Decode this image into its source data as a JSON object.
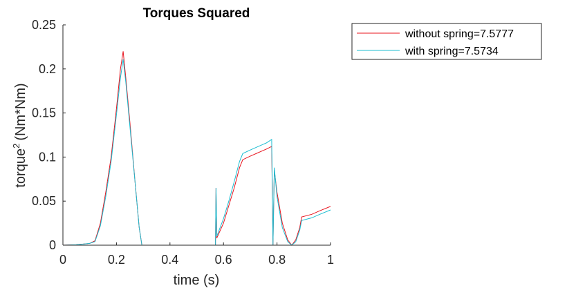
{
  "chart_data": {
    "type": "line",
    "title": "Torques Squared",
    "xlabel": "time (s)",
    "ylabel_base": "torque",
    "ylabel_superscript": "2",
    "ylabel_unit": "(Nm*Nm)",
    "xlim": [
      0,
      1
    ],
    "ylim": [
      0,
      0.25
    ],
    "x_ticks": [
      0,
      0.2,
      0.4,
      0.6,
      0.8,
      1
    ],
    "x_tick_labels": [
      "0",
      "0.2",
      "0.4",
      "0.6",
      "0.8",
      "1"
    ],
    "y_ticks": [
      0,
      0.05,
      0.1,
      0.15,
      0.2,
      0.25
    ],
    "y_tick_labels": [
      "0",
      "0.05",
      "0.1",
      "0.15",
      "0.2",
      "0.25"
    ],
    "grid": false,
    "legend_position": "outside-right-top",
    "series": [
      {
        "name": "without spring=7.5777",
        "color": "#e8141e",
        "points": [
          [
            0,
            0
          ],
          [
            0.05,
            0.0005
          ],
          [
            0.1,
            0.002
          ],
          [
            0.12,
            0.005
          ],
          [
            0.14,
            0.025
          ],
          [
            0.16,
            0.06
          ],
          [
            0.18,
            0.1
          ],
          [
            0.2,
            0.155
          ],
          [
            0.215,
            0.2
          ],
          [
            0.225,
            0.22
          ],
          [
            0.235,
            0.19
          ],
          [
            0.25,
            0.14
          ],
          [
            0.27,
            0.07
          ],
          [
            0.285,
            0.02
          ],
          [
            0.295,
            0.0
          ],
          [
            0.3,
            0
          ],
          [
            0.4,
            0
          ],
          [
            0.5,
            0
          ],
          [
            0.57,
            0
          ],
          [
            0.572,
            0.065
          ],
          [
            0.575,
            0.008
          ],
          [
            0.6,
            0.025
          ],
          [
            0.62,
            0.045
          ],
          [
            0.64,
            0.065
          ],
          [
            0.66,
            0.088
          ],
          [
            0.672,
            0.097
          ],
          [
            0.7,
            0.101
          ],
          [
            0.73,
            0.105
          ],
          [
            0.76,
            0.109
          ],
          [
            0.78,
            0.112
          ],
          [
            0.785,
            0.0
          ],
          [
            0.79,
            0.085
          ],
          [
            0.8,
            0.06
          ],
          [
            0.82,
            0.025
          ],
          [
            0.84,
            0.006
          ],
          [
            0.855,
            0.0
          ],
          [
            0.87,
            0.006
          ],
          [
            0.885,
            0.02
          ],
          [
            0.892,
            0.032
          ],
          [
            0.93,
            0.035
          ],
          [
            0.96,
            0.039
          ],
          [
            1.0,
            0.044
          ]
        ]
      },
      {
        "name": "with spring=7.5734",
        "color": "#1bbdd1",
        "points": [
          [
            0,
            0
          ],
          [
            0.05,
            0.0005
          ],
          [
            0.1,
            0.002
          ],
          [
            0.12,
            0.004
          ],
          [
            0.14,
            0.022
          ],
          [
            0.16,
            0.055
          ],
          [
            0.18,
            0.095
          ],
          [
            0.2,
            0.148
          ],
          [
            0.215,
            0.19
          ],
          [
            0.225,
            0.211
          ],
          [
            0.235,
            0.185
          ],
          [
            0.25,
            0.135
          ],
          [
            0.27,
            0.07
          ],
          [
            0.285,
            0.02
          ],
          [
            0.295,
            0.0
          ],
          [
            0.3,
            0
          ],
          [
            0.4,
            0
          ],
          [
            0.5,
            0
          ],
          [
            0.57,
            0
          ],
          [
            0.572,
            0.065
          ],
          [
            0.575,
            0.01
          ],
          [
            0.6,
            0.03
          ],
          [
            0.62,
            0.05
          ],
          [
            0.64,
            0.072
          ],
          [
            0.66,
            0.095
          ],
          [
            0.672,
            0.104
          ],
          [
            0.7,
            0.108
          ],
          [
            0.73,
            0.112
          ],
          [
            0.76,
            0.116
          ],
          [
            0.78,
            0.12
          ],
          [
            0.785,
            0.0
          ],
          [
            0.79,
            0.088
          ],
          [
            0.8,
            0.055
          ],
          [
            0.82,
            0.02
          ],
          [
            0.84,
            0.004
          ],
          [
            0.855,
            0.0
          ],
          [
            0.87,
            0.004
          ],
          [
            0.885,
            0.017
          ],
          [
            0.892,
            0.028
          ],
          [
            0.93,
            0.031
          ],
          [
            0.96,
            0.035
          ],
          [
            1.0,
            0.04
          ]
        ]
      }
    ]
  }
}
